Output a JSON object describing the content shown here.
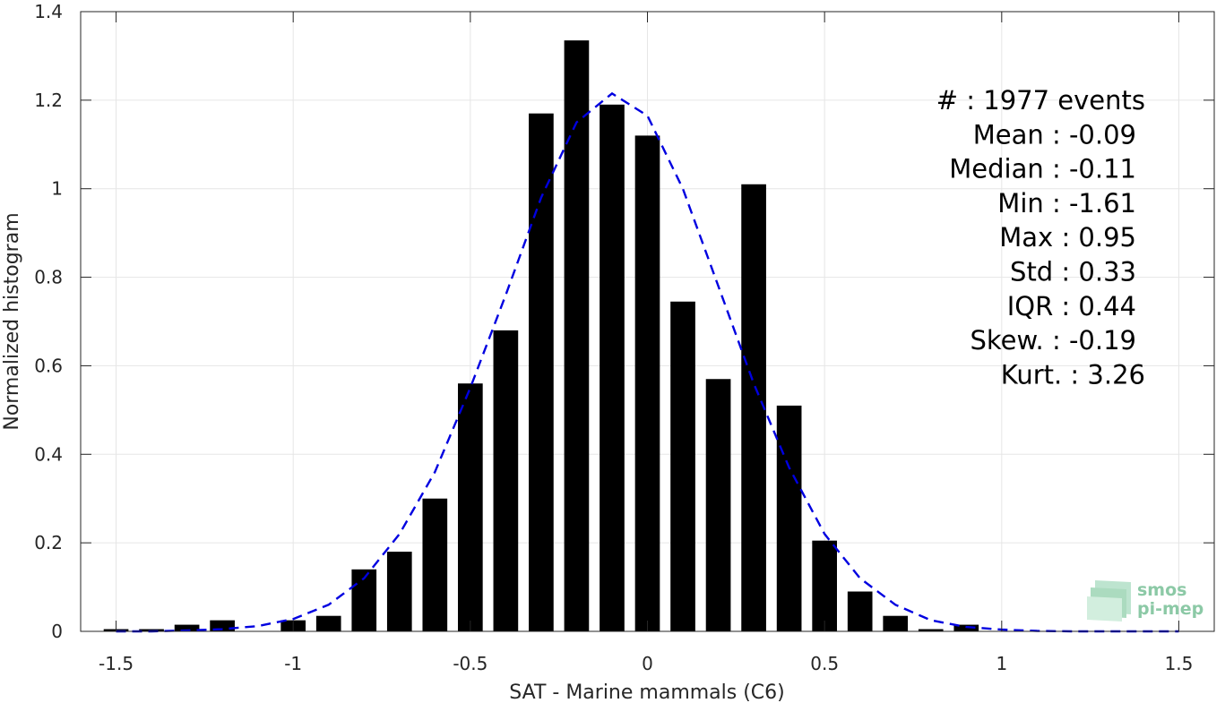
{
  "chart_data": {
    "type": "bar",
    "xlabel": "SAT - Marine mammals (C6)",
    "ylabel": "Normalized histogram",
    "xlim": [
      -1.6,
      1.6
    ],
    "ylim": [
      0,
      1.4
    ],
    "xticks": [
      -1.5,
      -1,
      -0.5,
      0,
      0.5,
      1,
      1.5
    ],
    "xtick_labels": [
      "-1.5",
      "-1",
      "-0.5",
      "0",
      "0.5",
      "1",
      "1.5"
    ],
    "yticks": [
      0,
      0.2,
      0.4,
      0.6,
      0.8,
      1,
      1.2,
      1.4
    ],
    "ytick_labels": [
      "0",
      "0.2",
      "0.4",
      "0.6",
      "0.8",
      "1",
      "1.2",
      "1.4"
    ],
    "grid": true,
    "bars": {
      "color": "#000000",
      "width": 0.07,
      "x": [
        -1.5,
        -1.4,
        -1.3,
        -1.2,
        -1.0,
        -0.9,
        -0.8,
        -0.7,
        -0.6,
        -0.5,
        -0.4,
        -0.3,
        -0.2,
        -0.1,
        0.0,
        0.1,
        0.2,
        0.3,
        0.4,
        0.5,
        0.6,
        0.7,
        0.8,
        0.9
      ],
      "values": [
        0.005,
        0.005,
        0.015,
        0.025,
        0.025,
        0.035,
        0.14,
        0.18,
        0.3,
        0.56,
        0.68,
        1.17,
        1.335,
        1.19,
        1.12,
        0.745,
        0.57,
        1.01,
        0.51,
        0.205,
        0.09,
        0.035,
        0.005,
        0.015
      ]
    },
    "fit": {
      "color": "#0000e0",
      "style": "dashed",
      "x": [
        -1.5,
        -1.4,
        -1.3,
        -1.2,
        -1.1,
        -1.0,
        -0.9,
        -0.8,
        -0.7,
        -0.6,
        -0.5,
        -0.4,
        -0.3,
        -0.2,
        -0.1,
        0.0,
        0.1,
        0.2,
        0.3,
        0.4,
        0.5,
        0.6,
        0.7,
        0.8,
        0.9,
        1.0,
        1.1,
        1.2,
        1.3,
        1.4,
        1.5
      ],
      "values": [
        0.0,
        0.0,
        0.002,
        0.005,
        0.012,
        0.028,
        0.06,
        0.12,
        0.22,
        0.36,
        0.55,
        0.76,
        0.98,
        1.15,
        1.215,
        1.165,
        1.0,
        0.78,
        0.56,
        0.37,
        0.22,
        0.12,
        0.06,
        0.025,
        0.01,
        0.004,
        0.001,
        0.0,
        0.0,
        0.0,
        0.0
      ]
    },
    "stats": [
      "#  : 1977 events",
      "Mean : -0.09",
      "Median : -0.11",
      "Min : -1.61",
      "Max : 0.95",
      "Std : 0.33",
      "IQR : 0.44",
      "Skew. : -0.19",
      "Kurt. : 3.26"
    ]
  },
  "logo": {
    "line1": "smos",
    "line2": "pi-mep"
  }
}
